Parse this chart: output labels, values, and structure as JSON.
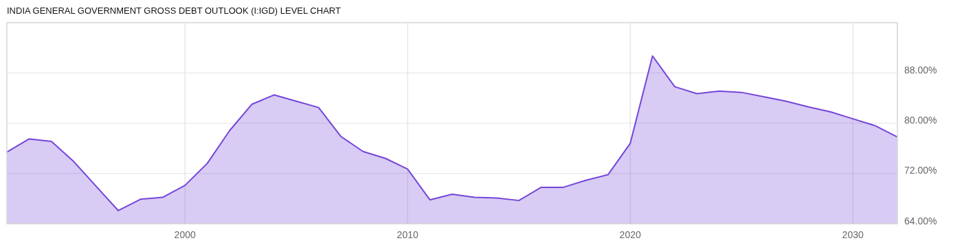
{
  "chart_data": {
    "type": "area",
    "title": "INDIA GENERAL GOVERNMENT GROSS DEBT OUTLOOK (I:IGD) LEVEL CHART",
    "x": [
      1992,
      1993,
      1994,
      1995,
      1996,
      1997,
      1998,
      1999,
      2000,
      2001,
      2002,
      2003,
      2004,
      2005,
      2006,
      2007,
      2008,
      2009,
      2010,
      2011,
      2012,
      2013,
      2014,
      2015,
      2016,
      2017,
      2018,
      2019,
      2020,
      2021,
      2022,
      2023,
      2024,
      2025,
      2026,
      2027,
      2028,
      2029,
      2030,
      2031,
      2032
    ],
    "series": [
      {
        "color": "#7445d9",
        "values": [
          75.4,
          77.5,
          77.1,
          73.9,
          70.0,
          66.1,
          67.9,
          68.2,
          70.1,
          73.6,
          78.8,
          83.0,
          84.5,
          83.5,
          82.5,
          77.9,
          75.5,
          74.4,
          72.7,
          67.8,
          68.7,
          68.2,
          68.1,
          67.7,
          69.8,
          69.8,
          70.9,
          71.8,
          76.8,
          90.7,
          85.8,
          84.7,
          85.1,
          84.9,
          84.2,
          83.5,
          82.6,
          81.8,
          80.7,
          79.6,
          77.8
        ]
      }
    ],
    "xlim": [
      1992,
      2032
    ],
    "xticks": [
      2000,
      2010,
      2020,
      2030
    ],
    "ylim": [
      64,
      96
    ],
    "yticks": [
      {
        "value": 64,
        "label": "64.00%"
      },
      {
        "value": 72,
        "label": "72.00%"
      },
      {
        "value": 80,
        "label": "80.00%"
      },
      {
        "value": 88,
        "label": "88.00%"
      }
    ],
    "grid": true
  }
}
